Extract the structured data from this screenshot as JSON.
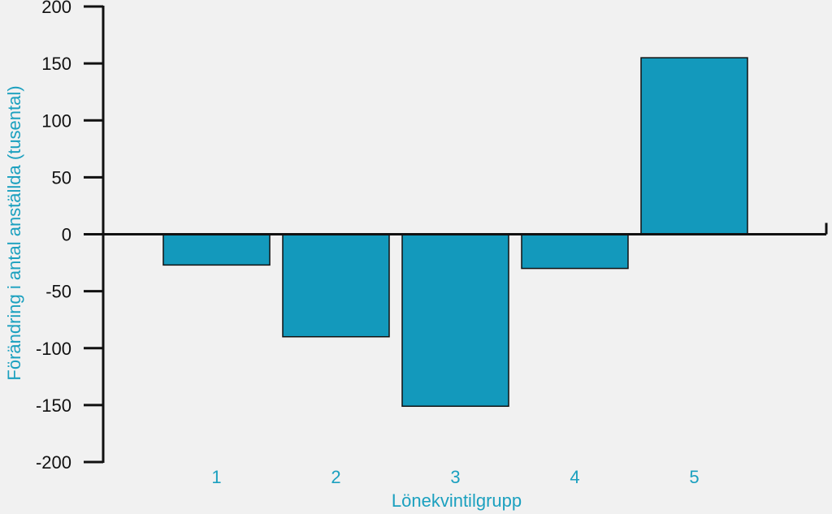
{
  "chart_data": {
    "type": "bar",
    "categories": [
      "1",
      "2",
      "3",
      "4",
      "5"
    ],
    "values": [
      -27,
      -90,
      -151,
      -30,
      155
    ],
    "title": "",
    "xlabel": "Lönekvintilgrupp",
    "ylabel": "Förändring i antal anställda (tusental)",
    "ylim": [
      -200,
      200
    ],
    "yticks": [
      200,
      150,
      100,
      50,
      0,
      -50,
      -100,
      -150,
      -200
    ],
    "ytick_labels": [
      "200",
      "150",
      "100",
      "50",
      "0",
      "-50",
      "-100",
      "-150",
      "-200"
    ],
    "grid": false,
    "legend": "none"
  },
  "colors": {
    "bar_fill": "#1399bc",
    "bar_stroke": "#111111",
    "axis": "#111111",
    "accent_text": "#1ba0bf",
    "background": "#f1f1f1"
  }
}
